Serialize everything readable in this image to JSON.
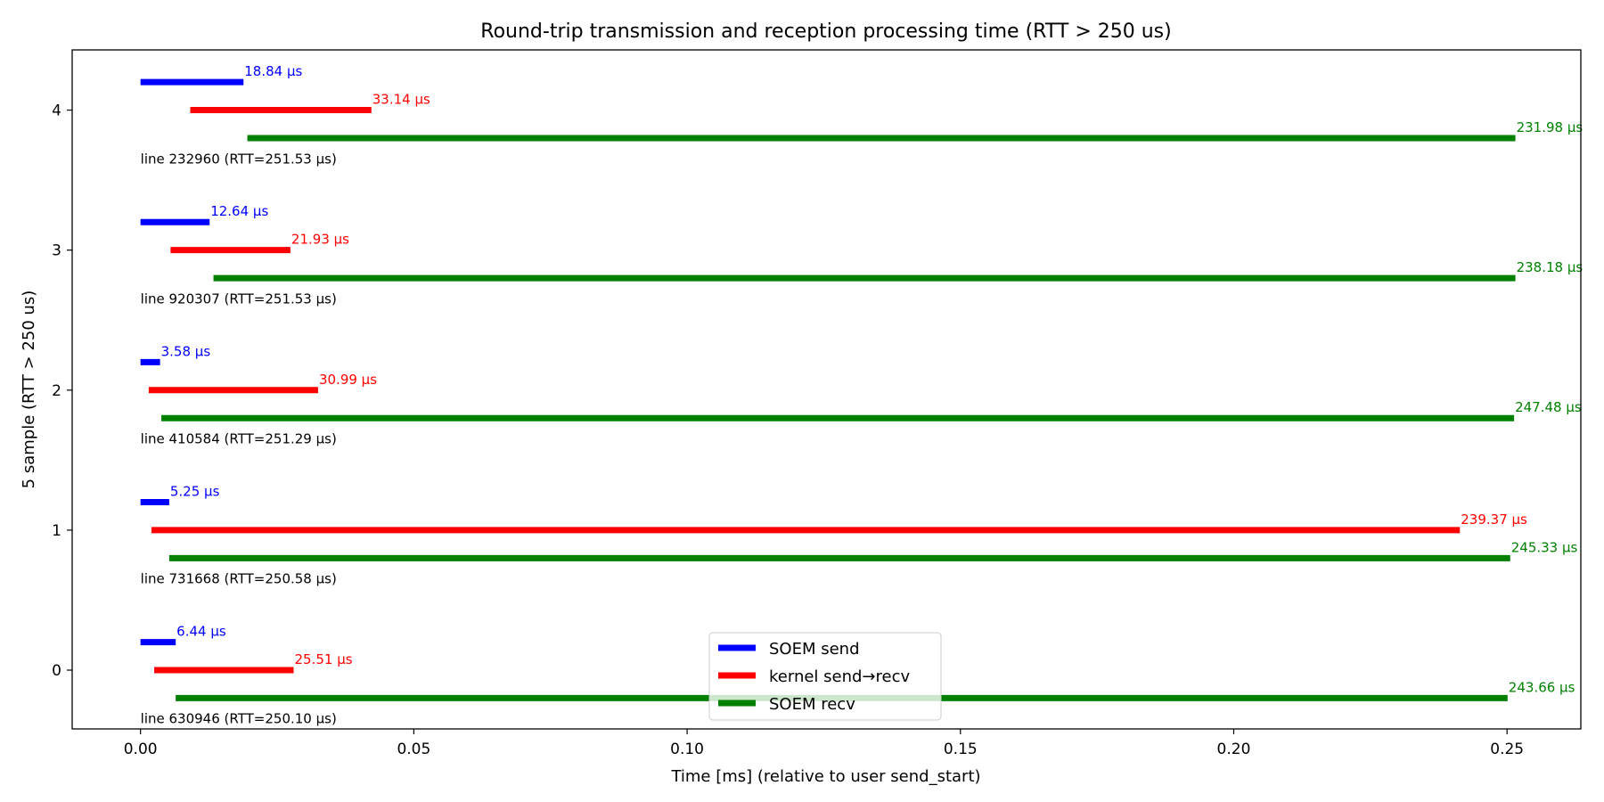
{
  "chart_data": {
    "type": "bar",
    "title": "Round-trip transmission and reception processing time (RTT > 250 us)",
    "xlabel": "Time [ms] (relative to user send_start)",
    "ylabel": "5 sample (RTT > 250 us)",
    "xlim": [
      -0.0125,
      0.2635
    ],
    "ylim": [
      -0.42,
      4.43
    ],
    "xticks": [
      0.0,
      0.05,
      0.1,
      0.15,
      0.2,
      0.25
    ],
    "xtick_labels": [
      "0.00",
      "0.05",
      "0.10",
      "0.15",
      "0.20",
      "0.25"
    ],
    "yticks": [
      0,
      1,
      2,
      3,
      4
    ],
    "ytick_labels": [
      "0",
      "1",
      "2",
      "3",
      "4"
    ],
    "legend_position": "bottom-center",
    "series": [
      {
        "name": "SOEM send",
        "color": "#0000ff",
        "row_offset": 0.2
      },
      {
        "name": "kernel send→recv",
        "color": "#ff0000",
        "row_offset": 0.0
      },
      {
        "name": "SOEM recv",
        "color": "#008000",
        "row_offset": -0.2
      }
    ],
    "rows": [
      {
        "y": 4,
        "caption": "line 232960 (RTT=251.53 µs)",
        "segments": [
          {
            "start": 0.0,
            "end": 0.01884,
            "label": "18.84 µs"
          },
          {
            "start": 0.0091,
            "end": 0.04224,
            "label": "33.14 µs"
          },
          {
            "start": 0.01955,
            "end": 0.25153,
            "label": "231.98 µs"
          }
        ]
      },
      {
        "y": 3,
        "caption": "line 920307 (RTT=251.53 µs)",
        "segments": [
          {
            "start": 0.0,
            "end": 0.01264,
            "label": "12.64 µs"
          },
          {
            "start": 0.0055,
            "end": 0.02743,
            "label": "21.93 µs"
          },
          {
            "start": 0.01335,
            "end": 0.25153,
            "label": "238.18 µs"
          }
        ]
      },
      {
        "y": 2,
        "caption": "line 410584 (RTT=251.29 µs)",
        "segments": [
          {
            "start": 0.0,
            "end": 0.00358,
            "label": "3.58 µs"
          },
          {
            "start": 0.0015,
            "end": 0.03249,
            "label": "30.99 µs"
          },
          {
            "start": 0.00381,
            "end": 0.25129,
            "label": "247.48 µs"
          }
        ]
      },
      {
        "y": 1,
        "caption": "line 731668 (RTT=250.58 µs)",
        "segments": [
          {
            "start": 0.0,
            "end": 0.00525,
            "label": "5.25 µs"
          },
          {
            "start": 0.002,
            "end": 0.24137,
            "label": "239.37 µs"
          },
          {
            "start": 0.00525,
            "end": 0.25058,
            "label": "245.33 µs"
          }
        ]
      },
      {
        "y": 0,
        "caption": "line 630946 (RTT=250.10 µs)",
        "segments": [
          {
            "start": 0.0,
            "end": 0.00644,
            "label": "6.44 µs"
          },
          {
            "start": 0.0025,
            "end": 0.02801,
            "label": "25.51 µs"
          },
          {
            "start": 0.00644,
            "end": 0.2501,
            "label": "243.66 µs"
          }
        ]
      }
    ]
  }
}
